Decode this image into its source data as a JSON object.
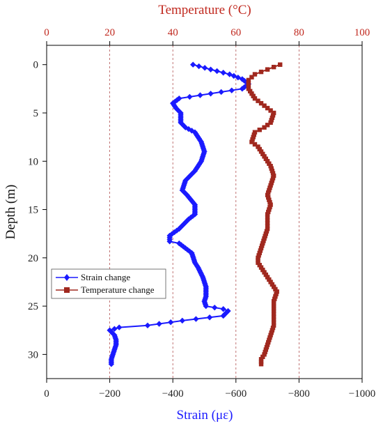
{
  "chart_data": {
    "type": "line",
    "xlabel_bottom": "Strain (με)",
    "xlabel_top": "Temperature (°C)",
    "ylabel": "Depth (m)",
    "bottom_axis": {
      "range": [
        0,
        -1000
      ],
      "ticks": [
        0,
        -200,
        -400,
        -600,
        -800,
        -1000
      ],
      "tick_labels": [
        "0",
        "−200",
        "−400",
        "−600",
        "−800",
        "−1000"
      ]
    },
    "top_axis": {
      "range": [
        0,
        100
      ],
      "ticks": [
        0,
        20,
        40,
        60,
        80,
        100
      ],
      "tick_labels": [
        "0",
        "20",
        "40",
        "60",
        "80",
        "100"
      ]
    },
    "y_axis": {
      "range": [
        -2,
        32.5
      ],
      "ticks": [
        0,
        5,
        10,
        15,
        20,
        25,
        30
      ],
      "tick_labels": [
        "0",
        "5",
        "10",
        "15",
        "20",
        "25",
        "30"
      ],
      "inverted": true
    },
    "grid": "vertical dashed at strain −200, −400, −600, −800",
    "legend_position": "lower-left",
    "series": [
      {
        "name": "Strain change",
        "axis": "bottom",
        "color": "#1a1aff",
        "marker": "diamond",
        "points": [
          [
            -464,
            0
          ],
          [
            -520,
            0.5
          ],
          [
            -580,
            1
          ],
          [
            -620,
            1.5
          ],
          [
            -640,
            2
          ],
          [
            -620,
            2.5
          ],
          [
            -520,
            3
          ],
          [
            -420,
            3.5
          ],
          [
            -400,
            4
          ],
          [
            -410,
            4.5
          ],
          [
            -425,
            5
          ],
          [
            -425,
            6
          ],
          [
            -440,
            6.5
          ],
          [
            -470,
            7
          ],
          [
            -490,
            8
          ],
          [
            -500,
            9
          ],
          [
            -490,
            10
          ],
          [
            -470,
            11
          ],
          [
            -440,
            12
          ],
          [
            -430,
            13
          ],
          [
            -445,
            13.5
          ],
          [
            -470,
            14.5
          ],
          [
            -470,
            15.5
          ],
          [
            -450,
            16
          ],
          [
            -420,
            17
          ],
          [
            -390,
            17.7
          ],
          [
            -390,
            18.3
          ],
          [
            -420,
            18.5
          ],
          [
            -460,
            19.5
          ],
          [
            -470,
            20.5
          ],
          [
            -480,
            21
          ],
          [
            -495,
            22
          ],
          [
            -505,
            23
          ],
          [
            -505,
            24
          ],
          [
            -500,
            24.5
          ],
          [
            -505,
            25
          ],
          [
            -560,
            25.3
          ],
          [
            -575,
            25.5
          ],
          [
            -560,
            26
          ],
          [
            -430,
            26.5
          ],
          [
            -320,
            27
          ],
          [
            -230,
            27.2
          ],
          [
            -200,
            27.5
          ],
          [
            -215,
            28
          ],
          [
            -220,
            28.5
          ],
          [
            -220,
            29
          ],
          [
            -210,
            30
          ],
          [
            -205,
            30.5
          ],
          [
            -205,
            31
          ]
        ]
      },
      {
        "name": "Temperature change",
        "axis": "top",
        "color": "#a0281e",
        "marker": "square",
        "points": [
          [
            74,
            0
          ],
          [
            70,
            0.5
          ],
          [
            66,
            1
          ],
          [
            64,
            1.6
          ],
          [
            64,
            2.5
          ],
          [
            66,
            3.5
          ],
          [
            68,
            4
          ],
          [
            70,
            4.5
          ],
          [
            72,
            5
          ],
          [
            71,
            6
          ],
          [
            69,
            6.5
          ],
          [
            66,
            7
          ],
          [
            65,
            8
          ],
          [
            67,
            8.5
          ],
          [
            69,
            9.5
          ],
          [
            71,
            10.5
          ],
          [
            72,
            11.5
          ],
          [
            71,
            12.5
          ],
          [
            70,
            13.5
          ],
          [
            71,
            14.5
          ],
          [
            70,
            15.5
          ],
          [
            70,
            17
          ],
          [
            69,
            18
          ],
          [
            68,
            19
          ],
          [
            67,
            20
          ],
          [
            67,
            20.5
          ],
          [
            69,
            21.5
          ],
          [
            71,
            22.5
          ],
          [
            73,
            23.5
          ],
          [
            72,
            24.5
          ],
          [
            72,
            25.5
          ],
          [
            72,
            27
          ],
          [
            71,
            28
          ],
          [
            70,
            29
          ],
          [
            69,
            30
          ],
          [
            68,
            30.5
          ],
          [
            68,
            31
          ]
        ]
      }
    ]
  }
}
